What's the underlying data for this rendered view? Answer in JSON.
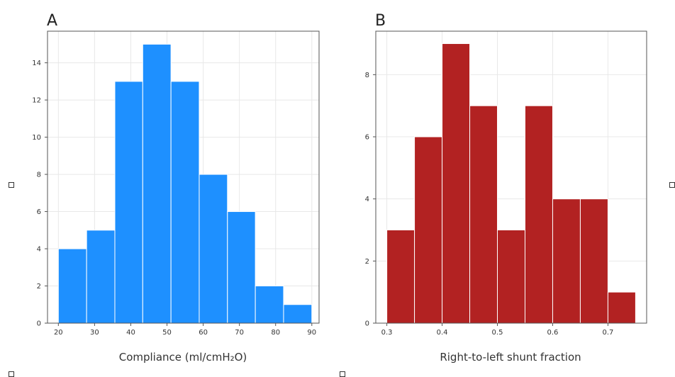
{
  "chart_data": [
    {
      "type": "bar",
      "panel": "A",
      "color": "#1e90ff",
      "bin_edges": [
        20,
        27.8,
        35.6,
        43.3,
        51.1,
        58.9,
        66.7,
        74.4,
        82.2,
        90
      ],
      "values": [
        4,
        5,
        13,
        15,
        13,
        8,
        6,
        2,
        1
      ],
      "xlabel": "Compliance (ml/cmH₂O)",
      "xlim": [
        17,
        92
      ],
      "ylim": [
        0,
        15.7
      ],
      "xticks": [
        20,
        30,
        40,
        50,
        60,
        70,
        80,
        90
      ],
      "yticks": [
        0,
        2,
        4,
        6,
        8,
        10,
        12,
        14
      ],
      "grid": true
    },
    {
      "type": "bar",
      "panel": "B",
      "color": "#b22222",
      "bin_edges": [
        0.3,
        0.35,
        0.4,
        0.45,
        0.5,
        0.55,
        0.6,
        0.65,
        0.7,
        0.75
      ],
      "values": [
        3,
        6,
        9,
        7,
        3,
        7,
        4,
        4,
        1
      ],
      "xlabel": "Right-to-left shunt fraction",
      "xlim": [
        0.28,
        0.77
      ],
      "ylim": [
        0,
        9.4
      ],
      "xticks": [
        0.3,
        0.4,
        0.5,
        0.6,
        0.7
      ],
      "yticks": [
        0,
        2,
        4,
        6,
        8
      ],
      "grid": true
    }
  ]
}
